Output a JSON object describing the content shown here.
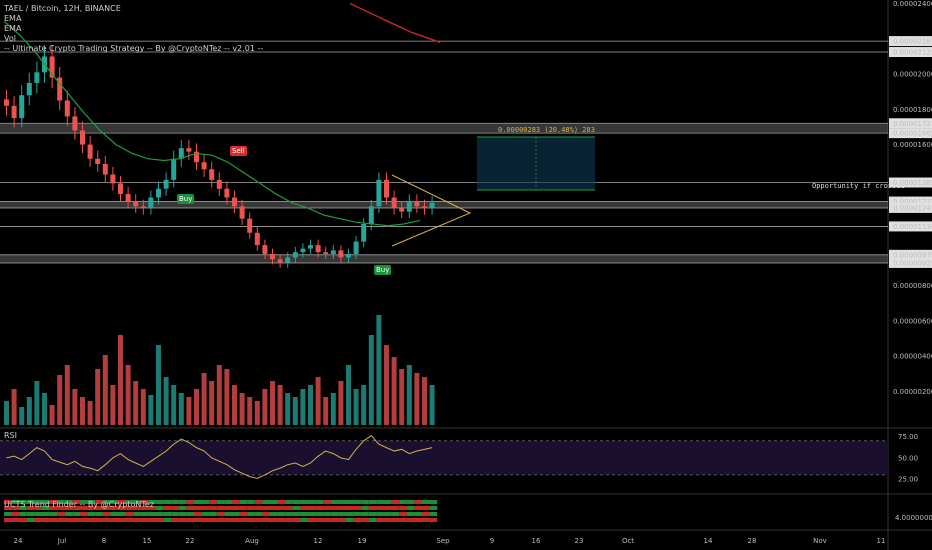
{
  "header": {
    "line1": "TAEL / Bitcoin, 12H, BINANCE",
    "line2": "EMA",
    "line3": "EMA",
    "line4": "Vol",
    "line5": "-- Ultimate Crypto Trading Strategy -- By @CryptoNTez -- v2.01 --"
  },
  "panes": {
    "rsi_title": "RSI",
    "trend_title": "UCTS Trend Finder -- By @CryptoNTez"
  },
  "annotations": {
    "sell": "Sell",
    "buy1": "Buy",
    "buy2": "Buy",
    "measure": "0.00000283 (20.48%) 283",
    "opportunity": "Opportunity if crossed"
  },
  "colors": {
    "up": "#26a69a",
    "down": "#ef5350",
    "ema_green": "#1e9e3a",
    "ema_red": "#c62828",
    "rsi_line": "#d4b24c",
    "rsi_bg": "#1a0f2e",
    "triangle": "#d4b24c",
    "zone": "#7a7a7a"
  },
  "chart_data": [
    {
      "type": "line",
      "title": "TAEL / Bitcoin, 12H, BINANCE",
      "x_ticks": [
        "24",
        "Jul",
        "8",
        "15",
        "22",
        "Aug",
        "12",
        "19",
        "Sep",
        "9",
        "16",
        "23",
        "Oct",
        "14",
        "28",
        "Nov",
        "11"
      ],
      "y_ticks": [
        "0.00002400",
        "0.00002187",
        "0.00002125",
        "0.00002000",
        "0.00001800",
        "0.00001721",
        "0.00001665",
        "0.00001600",
        "0.00001385",
        "0.00001277",
        "0.00001241",
        "0.00001136",
        "0.00000975",
        "0.00000929",
        "0.00000800",
        "0.00000600",
        "0.00000400",
        "0.00000200"
      ],
      "close": [
        1.82e-05,
        1.75e-05,
        1.88e-05,
        1.95e-05,
        2.01e-05,
        2.1e-05,
        1.98e-05,
        1.85e-05,
        1.76e-05,
        1.68e-05,
        1.6e-05,
        1.52e-05,
        1.49e-05,
        1.43e-05,
        1.38e-05,
        1.32e-05,
        1.28e-05,
        1.25e-05,
        1.24e-05,
        1.3e-05,
        1.35e-05,
        1.4e-05,
        1.52e-05,
        1.58e-05,
        1.56e-05,
        1.5e-05,
        1.46e-05,
        1.4e-05,
        1.35e-05,
        1.3e-05,
        1.25e-05,
        1.18e-05,
        1.1e-05,
        1.03e-05,
        9.8e-06,
        9.5e-06,
        9.3e-06,
        9.6e-06,
        9.9e-06,
        1.01e-05,
        1.03e-05,
        9.9e-06,
        9.8e-06,
        1e-05,
        9.6e-06,
        9.8e-06,
        1.05e-05,
        1.15e-05,
        1.25e-05,
        1.4e-05,
        1.3e-05,
        1.24e-05,
        1.22e-05,
        1.28e-05,
        1.25e-05,
        1.24e-05,
        1.27e-05
      ],
      "series": [
        {
          "name": "EMA",
          "values": [
            2.3e-05,
            2.22e-05,
            2.12e-05,
            2e-05,
            1.89e-05,
            1.78e-05,
            1.68e-05,
            1.6e-05,
            1.55e-05,
            1.52e-05,
            1.51e-05,
            1.52e-05,
            1.55e-05,
            1.54e-05,
            1.5e-05,
            1.44e-05,
            1.38e-05,
            1.32e-05,
            1.27e-05,
            1.24e-05,
            1.2e-05,
            1.18e-05,
            1.16e-05,
            1.15e-05,
            1.14e-05,
            1.15e-05,
            1.17e-05
          ]
        },
        {
          "name": "EMA",
          "values": [
            2.4e-05,
            2.36e-05,
            2.32e-05,
            2.28e-05,
            2.24e-05,
            2.21e-05,
            2.18e-05
          ]
        }
      ],
      "levels": [
        2.187e-05,
        2.125e-05,
        1.721e-05,
        1.665e-05,
        1.385e-05,
        1.277e-05,
        1.241e-05,
        1.136e-05,
        9.75e-06,
        9.29e-06
      ]
    },
    {
      "type": "bar",
      "title": "Vol",
      "values": [
        12,
        18,
        9,
        14,
        22,
        16,
        10,
        25,
        30,
        18,
        14,
        12,
        28,
        35,
        20,
        45,
        30,
        22,
        18,
        15,
        40,
        24,
        20,
        16,
        14,
        18,
        26,
        22,
        30,
        28,
        20,
        16,
        14,
        12,
        18,
        22,
        20,
        16,
        14,
        18,
        20,
        24,
        14,
        16,
        22,
        30,
        18,
        20,
        45,
        55,
        40,
        34,
        28,
        30,
        26,
        24,
        20
      ]
    },
    {
      "type": "line",
      "title": "RSI",
      "y_ticks": [
        "75.00",
        "50.00",
        "25.00"
      ],
      "values": [
        50,
        52,
        48,
        55,
        62,
        58,
        48,
        45,
        42,
        46,
        40,
        38,
        35,
        42,
        50,
        55,
        48,
        44,
        40,
        46,
        52,
        58,
        66,
        72,
        68,
        62,
        58,
        50,
        46,
        42,
        36,
        32,
        28,
        26,
        30,
        35,
        38,
        42,
        44,
        40,
        44,
        52,
        58,
        55,
        50,
        48,
        60,
        70,
        76,
        66,
        62,
        58,
        60,
        55,
        58,
        60,
        62
      ]
    },
    {
      "type": "heatmap",
      "title": "UCTS Trend Finder -- By @CryptoNTez",
      "y_ticks": [
        "4.00000000"
      ],
      "rows": 4
    }
  ]
}
